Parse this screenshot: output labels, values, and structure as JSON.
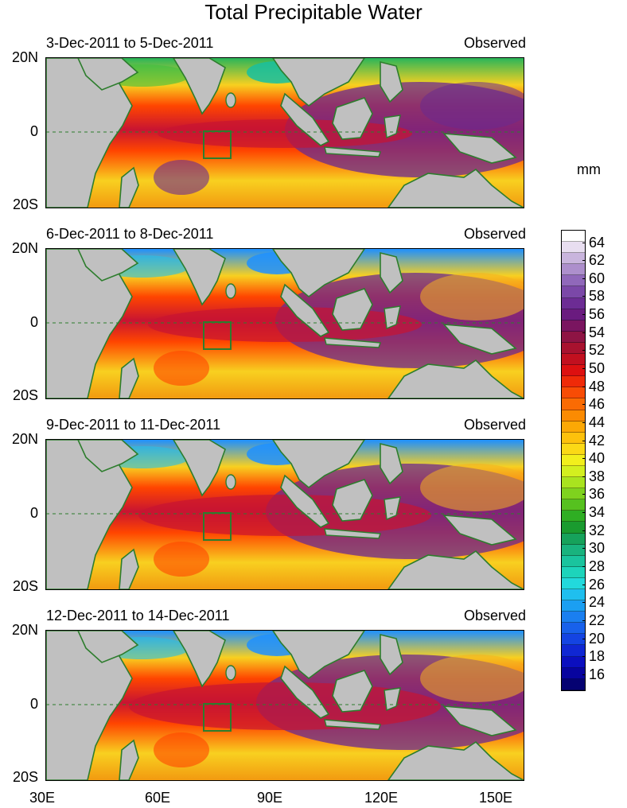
{
  "title": "Total Precipitable Water",
  "units": "mm",
  "panels": [
    {
      "period": "3-Dec-2011 to 5-Dec-2011",
      "status": "Observed"
    },
    {
      "period": "6-Dec-2011 to 8-Dec-2011",
      "status": "Observed"
    },
    {
      "period": "9-Dec-2011 to 11-Dec-2011",
      "status": "Observed"
    },
    {
      "period": "12-Dec-2011 to 14-Dec-2011",
      "status": "Observed"
    }
  ],
  "lat_labels": {
    "north": "20N",
    "equator": "0",
    "south": "20S"
  },
  "lon_labels": [
    "30E",
    "60E",
    "90E",
    "120E",
    "150E"
  ],
  "colorbar": {
    "ticks": [
      "64",
      "62",
      "60",
      "58",
      "56",
      "54",
      "52",
      "50",
      "48",
      "46",
      "44",
      "42",
      "40",
      "38",
      "36",
      "34",
      "32",
      "30",
      "28",
      "26",
      "24",
      "22",
      "20",
      "18",
      "16"
    ],
    "colors": [
      "#ffffff",
      "#e8def0",
      "#c9b5dd",
      "#ad8fcc",
      "#9068ba",
      "#7b48a8",
      "#6c2c94",
      "#6a1b7f",
      "#7a1560",
      "#8e1444",
      "#a8122f",
      "#c2101f",
      "#dd1010",
      "#ef2a08",
      "#f84c05",
      "#fa6b03",
      "#fb8b02",
      "#fca805",
      "#fdc10c",
      "#fbd916",
      "#f2ef1c",
      "#d3ef1f",
      "#a9e31f",
      "#7fd21e",
      "#56c11f",
      "#2fae23",
      "#1a9b2f",
      "#16a25b",
      "#19b37e",
      "#1ac49e",
      "#1dd4bb",
      "#22d9dc",
      "#1fbfee",
      "#1b9ff2",
      "#1a7ff0",
      "#1861eb",
      "#1444e2",
      "#1027d3",
      "#0b0fbf",
      "#08049f",
      "#050272"
    ]
  },
  "colors": {
    "land": "#c0c0c0",
    "coast": "#2d7d2d",
    "box": "#2d7d2d",
    "dry": "#f8d020",
    "mid": "#ff4500",
    "moist": "#c81432",
    "wet": "#6a2a90",
    "low": "#1e90ff"
  }
}
